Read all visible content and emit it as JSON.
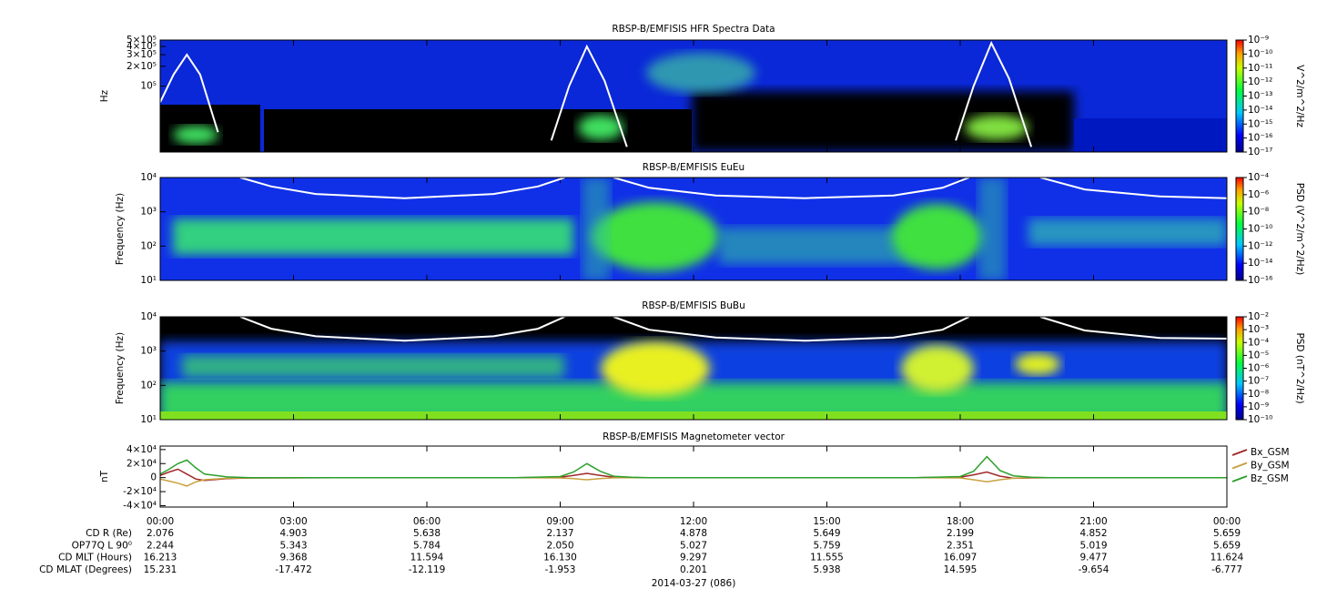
{
  "chart_data": [
    {
      "type": "spectrogram",
      "title": "RBSP-B/EMFISIS  HFR Spectra Data",
      "ylabel": "Hz",
      "log_y": true,
      "ylim": [
        10000,
        500000
      ],
      "yticks": [
        {
          "value": 100000,
          "label": "10⁵"
        },
        {
          "value": 200000,
          "label": "2×10⁵"
        },
        {
          "value": 300000,
          "label": "3×10⁵"
        },
        {
          "value": 400000,
          "label": "4×10⁵"
        },
        {
          "value": 500000,
          "label": "5×10⁵"
        }
      ],
      "xlim": [
        0,
        24
      ],
      "x": [
        0,
        0.3,
        0.6,
        0.9,
        1.3,
        5,
        8.8,
        9.2,
        9.6,
        10,
        10.5,
        14,
        17.9,
        18.3,
        18.7,
        19.1,
        19.6
      ],
      "series": [
        {
          "color": "#ffffff",
          "values": [
            57000,
            150000,
            300000,
            150000,
            20000,
            null,
            15000,
            100000,
            400000,
            120000,
            12000,
            null,
            15000,
            100000,
            450000,
            130000,
            12000
          ]
        }
      ],
      "colorbar": {
        "label": "V^2/m^2/Hz",
        "lim": [
          1e-17,
          1e-09
        ],
        "ticks": [
          {
            "value": 1e-17,
            "label": "10⁻¹⁷"
          },
          {
            "value": 1e-16,
            "label": "10⁻¹⁶"
          },
          {
            "value": 1e-15,
            "label": "10⁻¹⁵"
          },
          {
            "value": 1e-14,
            "label": "10⁻¹⁴"
          },
          {
            "value": 1e-13,
            "label": "10⁻¹³"
          },
          {
            "value": 1e-12,
            "label": "10⁻¹²"
          },
          {
            "value": 1e-11,
            "label": "10⁻¹¹"
          },
          {
            "value": 1e-10,
            "label": "10⁻¹⁰"
          },
          {
            "value": 1e-09,
            "label": "10⁻⁹"
          }
        ]
      }
    },
    {
      "type": "spectrogram",
      "title": "RBSP-B/EMFISIS  EuEu",
      "ylabel": "Frequency (Hz)",
      "log_y": true,
      "ylim": [
        10,
        10000
      ],
      "yticks": [
        {
          "value": 10,
          "label": "10¹"
        },
        {
          "value": 100,
          "label": "10²"
        },
        {
          "value": 1000,
          "label": "10³"
        },
        {
          "value": 10000,
          "label": "10⁴"
        }
      ],
      "xlim": [
        0,
        24
      ],
      "x": [
        1.8,
        2.5,
        3.5,
        5.5,
        7.5,
        8.5,
        9.1,
        9.6,
        10.2,
        11,
        12.5,
        14.5,
        16.5,
        17.6,
        18.2,
        18.7,
        19.8,
        20.8,
        22.5,
        24
      ],
      "series": [
        {
          "color": "#ffffff",
          "values": [
            10000,
            5500,
            3300,
            2500,
            3300,
            5500,
            10000,
            null,
            10000,
            5000,
            3000,
            2500,
            3000,
            5000,
            10000,
            null,
            10000,
            4500,
            2800,
            2500
          ]
        }
      ],
      "colorbar": {
        "label": "PSD (V^2/m^2/Hz)",
        "lim": [
          1e-16,
          0.0001
        ],
        "ticks": [
          {
            "value": 1e-16,
            "label": "10⁻¹⁶"
          },
          {
            "value": 1e-14,
            "label": "10⁻¹⁴"
          },
          {
            "value": 1e-12,
            "label": "10⁻¹²"
          },
          {
            "value": 1e-10,
            "label": "10⁻¹⁰"
          },
          {
            "value": 1e-08,
            "label": "10⁻⁸"
          },
          {
            "value": 1e-06,
            "label": "10⁻⁶"
          },
          {
            "value": 0.0001,
            "label": "10⁻⁴"
          }
        ]
      }
    },
    {
      "type": "spectrogram",
      "title": "RBSP-B/EMFISIS  BuBu",
      "ylabel": "Frequency (Hz)",
      "log_y": true,
      "ylim": [
        10,
        10000
      ],
      "yticks": [
        {
          "value": 10,
          "label": "10¹"
        },
        {
          "value": 100,
          "label": "10²"
        },
        {
          "value": 1000,
          "label": "10³"
        },
        {
          "value": 10000,
          "label": "10⁴"
        }
      ],
      "xlim": [
        0,
        24
      ],
      "x": [
        1.8,
        2.5,
        3.5,
        5.5,
        7.5,
        8.5,
        9.1,
        9.6,
        10.2,
        11,
        12.5,
        14.5,
        16.5,
        17.6,
        18.2,
        18.7,
        19.8,
        20.8,
        22.5,
        24
      ],
      "series": [
        {
          "color": "#ffffff",
          "values": [
            10000,
            4500,
            2700,
            2000,
            2700,
            4500,
            10000,
            null,
            10000,
            4200,
            2500,
            2000,
            2500,
            4200,
            10000,
            null,
            10000,
            4000,
            2400,
            2300
          ]
        }
      ],
      "colorbar": {
        "label": "PSD (nT^2/Hz)",
        "lim": [
          1e-10,
          0.01
        ],
        "ticks": [
          {
            "value": 1e-10,
            "label": "10⁻¹⁰"
          },
          {
            "value": 1e-09,
            "label": "10⁻⁹"
          },
          {
            "value": 1e-08,
            "label": "10⁻⁸"
          },
          {
            "value": 1e-07,
            "label": "10⁻⁷"
          },
          {
            "value": 1e-06,
            "label": "10⁻⁶"
          },
          {
            "value": 1e-05,
            "label": "10⁻⁵"
          },
          {
            "value": 0.0001,
            "label": "10⁻⁴"
          },
          {
            "value": 0.001,
            "label": "10⁻³"
          },
          {
            "value": 0.01,
            "label": "10⁻²"
          }
        ]
      }
    },
    {
      "type": "line",
      "title": "RBSP-B/EMFISIS  Magnetometer vector",
      "ylabel": "nT",
      "ylim": [
        -42000,
        45000
      ],
      "yticks": [
        {
          "value": -40000,
          "label": "-4×10⁴"
        },
        {
          "value": -20000,
          "label": "-2×10⁴"
        },
        0,
        {
          "value": 20000,
          "label": "2×10⁴"
        },
        {
          "value": 40000,
          "label": "4×10⁴"
        }
      ],
      "xlim": [
        0,
        24
      ],
      "xticks": [
        {
          "value": 0,
          "label": "00:00"
        },
        {
          "value": 3,
          "label": "03:00"
        },
        {
          "value": 6,
          "label": "06:00"
        },
        {
          "value": 9,
          "label": "09:00"
        },
        {
          "value": 12,
          "label": "12:00"
        },
        {
          "value": 15,
          "label": "15:00"
        },
        {
          "value": 18,
          "label": "18:00"
        },
        {
          "value": 21,
          "label": "21:00"
        },
        {
          "value": 24,
          "label": "00:00"
        }
      ],
      "x": [
        0,
        0.2,
        0.4,
        0.6,
        0.8,
        1.0,
        1.5,
        2,
        4,
        6,
        8,
        9,
        9.3,
        9.6,
        9.9,
        10.2,
        10.6,
        11,
        13,
        15,
        17,
        18,
        18.3,
        18.6,
        18.9,
        19.2,
        19.6,
        20,
        22,
        24
      ],
      "series": [
        {
          "name": "Bx_GSM",
          "color": "#a0282a",
          "values": [
            3000,
            8000,
            12000,
            5000,
            -2000,
            -4000,
            -1500,
            -500,
            0,
            0,
            0,
            500,
            3000,
            6000,
            3000,
            500,
            0,
            0,
            0,
            0,
            0,
            500,
            4000,
            8000,
            2000,
            -1000,
            -500,
            0,
            0,
            0
          ]
        },
        {
          "name": "By_GSM",
          "color": "#c8a040",
          "values": [
            -2000,
            -5000,
            -8000,
            -12000,
            -6000,
            -3000,
            -1000,
            -300,
            0,
            0,
            0,
            -500,
            -1500,
            -3000,
            -1500,
            -300,
            0,
            0,
            0,
            0,
            0,
            -500,
            -3000,
            -6000,
            -3000,
            -800,
            -200,
            0,
            0,
            0
          ]
        },
        {
          "name": "Bz_GSM",
          "color": "#2ca02c",
          "values": [
            5000,
            12000,
            20000,
            25000,
            14000,
            5000,
            1000,
            0,
            0,
            0,
            0,
            1500,
            8000,
            20000,
            9000,
            2000,
            500,
            0,
            0,
            0,
            0,
            1500,
            9000,
            30000,
            10000,
            2500,
            500,
            0,
            0,
            0
          ]
        }
      ]
    }
  ],
  "ephemeris": [
    {
      "label": "CD R (Re)",
      "values": [
        "2.076",
        "4.903",
        "5.638",
        "2.137",
        "4.878",
        "5.649",
        "2.199",
        "4.852",
        "5.659"
      ]
    },
    {
      "label": "OP77Q L 90⁰",
      "values": [
        "2.244",
        "5.343",
        "5.784",
        "2.050",
        "5.027",
        "5.759",
        "2.351",
        "5.019",
        "5.659"
      ]
    },
    {
      "label": "CD MLT (Hours)",
      "values": [
        "16.213",
        "9.368",
        "11.594",
        "16.130",
        "9.297",
        "11.555",
        "16.097",
        "9.477",
        "11.624"
      ]
    },
    {
      "label": "CD MLAT (Degrees)",
      "values": [
        "15.231",
        "-17.472",
        "-12.119",
        "-1.953",
        "0.201",
        "5.938",
        "14.595",
        "-9.654",
        "-6.777"
      ]
    }
  ],
  "date": "2014-03-27 (086)"
}
